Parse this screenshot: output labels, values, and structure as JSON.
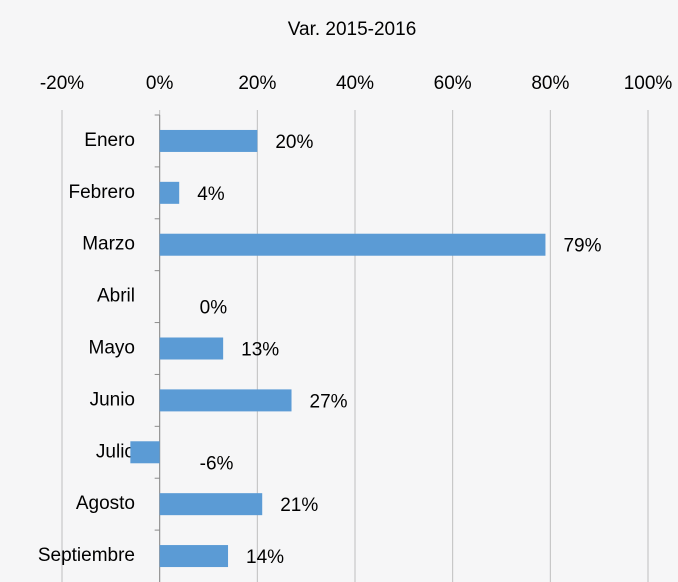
{
  "chart_data": {
    "type": "bar",
    "orientation": "horizontal",
    "title": "Var. 2015-2016",
    "categories": [
      "Enero",
      "Febrero",
      "Marzo",
      "Abril",
      "Mayo",
      "Junio",
      "Julio",
      "Agosto",
      "Septiembre"
    ],
    "values": [
      20,
      4,
      79,
      0,
      13,
      27,
      -6,
      21,
      14
    ],
    "value_labels": [
      "20%",
      "4%",
      "79%",
      "0%",
      "13%",
      "27%",
      "-6%",
      "21%",
      "14%"
    ],
    "color": "#5b9bd5",
    "xlim": [
      -20,
      100
    ],
    "xticks": [
      {
        "value": -20,
        "label": "-20%"
      },
      {
        "value": 0,
        "label": "0%"
      },
      {
        "value": 20,
        "label": "20%"
      },
      {
        "value": 40,
        "label": "40%"
      },
      {
        "value": 60,
        "label": "60%"
      },
      {
        "value": 80,
        "label": "80%"
      },
      {
        "value": 100,
        "label": "100%"
      }
    ],
    "grid": true
  }
}
